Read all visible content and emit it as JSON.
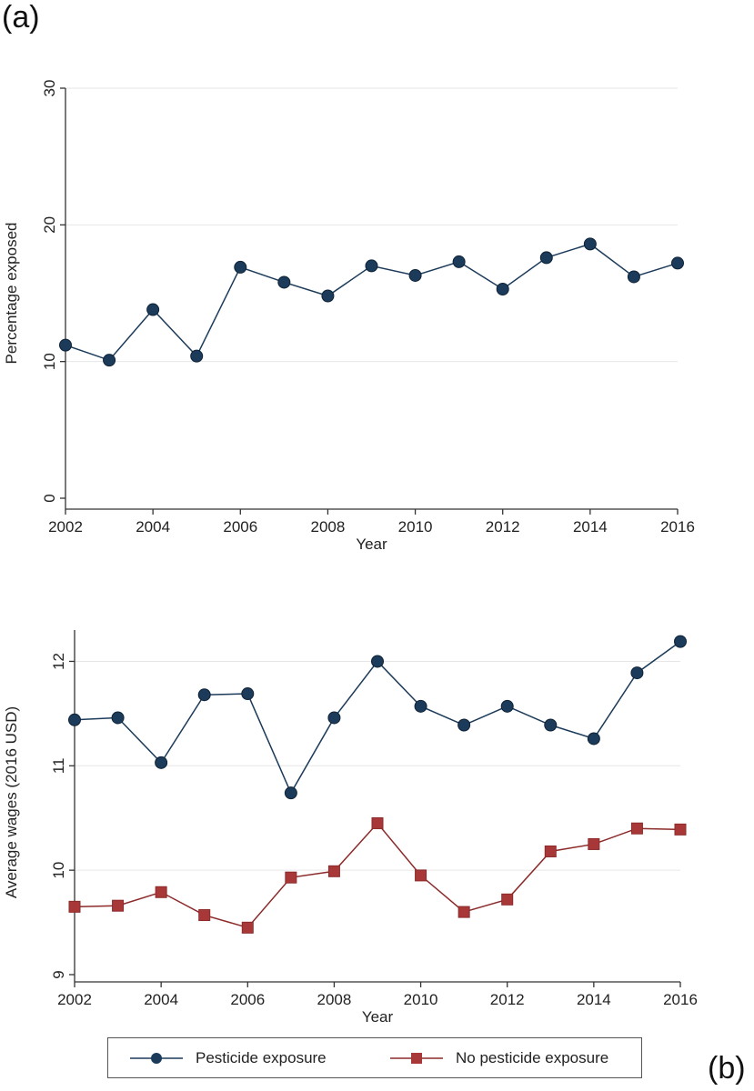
{
  "panel_labels": {
    "a": "(a)",
    "b": "(b)"
  },
  "colors": {
    "pesticide": "#1c3b5a",
    "no_pesticide": "#8c2a2a",
    "no_pesticide_marker": "#a83838",
    "axis": "#333333",
    "grid": "#e6e6e6"
  },
  "legend": {
    "pesticide_label": "Pesticide exposure",
    "no_pesticide_label": "No pesticide exposure"
  },
  "chart_data": [
    {
      "type": "line",
      "panel": "(a)",
      "xlabel": "Year",
      "ylabel": "Percentage exposed",
      "xlim": [
        2002,
        2016
      ],
      "ylim": [
        0,
        30
      ],
      "xticks": [
        2002,
        2004,
        2006,
        2008,
        2010,
        2012,
        2014,
        2016
      ],
      "yticks": [
        0,
        10,
        20,
        30
      ],
      "grid": true,
      "x": [
        2002,
        2003,
        2004,
        2005,
        2006,
        2007,
        2008,
        2009,
        2010,
        2011,
        2012,
        2013,
        2014,
        2015,
        2016
      ],
      "series": [
        {
          "marker": "circle",
          "color": "#1c3b5a",
          "values": [
            11.2,
            10.1,
            13.8,
            10.4,
            16.9,
            15.8,
            14.8,
            17.0,
            16.3,
            17.3,
            15.3,
            17.6,
            18.6,
            16.2,
            17.2
          ]
        }
      ]
    },
    {
      "type": "line",
      "panel": "(b)",
      "xlabel": "Year",
      "ylabel": "Average wages (2016 USD)",
      "xlim": [
        2002,
        2016
      ],
      "ylim": [
        9,
        12.3
      ],
      "xticks": [
        2002,
        2004,
        2006,
        2008,
        2010,
        2012,
        2014,
        2016
      ],
      "yticks": [
        9,
        10,
        11,
        12
      ],
      "grid": true,
      "legend_position": "bottom",
      "x": [
        2002,
        2003,
        2004,
        2005,
        2006,
        2007,
        2008,
        2009,
        2010,
        2011,
        2012,
        2013,
        2014,
        2015,
        2016
      ],
      "series": [
        {
          "name": "Pesticide exposure",
          "marker": "circle",
          "color": "#1c3b5a",
          "values": [
            11.44,
            11.46,
            11.03,
            11.68,
            11.69,
            10.74,
            11.46,
            12.0,
            11.57,
            11.39,
            11.57,
            11.39,
            11.26,
            11.89,
            12.19
          ]
        },
        {
          "name": "No pesticide exposure",
          "marker": "square",
          "color": "#8c2a2a",
          "values": [
            9.65,
            9.66,
            9.79,
            9.57,
            9.45,
            9.93,
            9.99,
            10.45,
            9.95,
            9.6,
            9.72,
            10.18,
            10.25,
            10.4,
            10.39
          ]
        }
      ]
    }
  ]
}
